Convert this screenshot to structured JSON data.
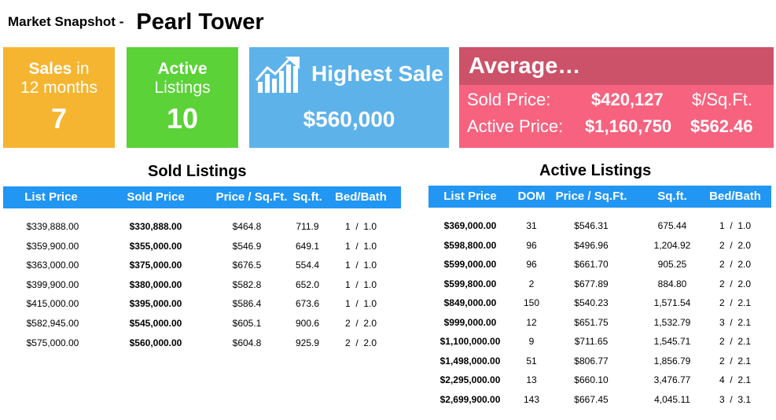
{
  "header": {
    "label": "Market Snapshot -",
    "title": "Pearl Tower"
  },
  "cards": {
    "sales": {
      "line1_bold": "Sales",
      "line1_rest": " in",
      "line2": "12 months",
      "value": "7"
    },
    "active": {
      "line1": "Active",
      "line2": "Listings",
      "value": "10"
    },
    "highest": {
      "title": "Highest Sale",
      "value": "$560,000",
      "icon": "chart-growth-icon"
    },
    "average": {
      "title": "Average…",
      "sold_label": "Sold Price:",
      "sold_value": "$420,127",
      "psf_label": "$/Sq.Ft.",
      "active_label": "Active Price:",
      "active_value": "$1,160,750",
      "psf_value": "$562.46"
    }
  },
  "sold": {
    "title": "Sold Listings",
    "headers": [
      "List Price",
      "Sold Price",
      "Price / Sq.Ft.",
      "Sq.ft.",
      "Bed/Bath"
    ],
    "rows": [
      [
        "$339,888.00",
        "$330,888.00",
        "$464.8",
        "711.9",
        "1  /  1.0"
      ],
      [
        "$359,900.00",
        "$355,000.00",
        "$546.9",
        "649.1",
        "1  /  1.0"
      ],
      [
        "$363,000.00",
        "$375,000.00",
        "$676.5",
        "554.4",
        "1  /  1.0"
      ],
      [
        "$399,900.00",
        "$380,000.00",
        "$582.8",
        "652.0",
        "1  /  1.0"
      ],
      [
        "$415,000.00",
        "$395,000.00",
        "$586.4",
        "673.6",
        "1  /  1.0"
      ],
      [
        "$582,945.00",
        "$545,000.00",
        "$605.1",
        "900.6",
        "2  /  2.0"
      ],
      [
        "$575,000.00",
        "$560,000.00",
        "$604.8",
        "925.9",
        "2  /  2.0"
      ]
    ]
  },
  "active": {
    "title": "Active Listings",
    "headers": [
      "List Price",
      "DOM",
      "Price / Sq.Ft.",
      "Sq.ft.",
      "Bed/Bath"
    ],
    "rows": [
      [
        "$369,000.00",
        "31",
        "$546.31",
        "675.44",
        "1  /  1.0"
      ],
      [
        "$598,800.00",
        "96",
        "$496.96",
        "1,204.92",
        "2  /  2.0"
      ],
      [
        "$599,000.00",
        "96",
        "$661.70",
        "905.25",
        "2  /  2.0"
      ],
      [
        "$599,800.00",
        "2",
        "$677.89",
        "884.80",
        "2  /  2.0"
      ],
      [
        "$849,000.00",
        "150",
        "$540.23",
        "1,571.54",
        "2  /  2.1"
      ],
      [
        "$999,000.00",
        "12",
        "$651.75",
        "1,532.79",
        "3  /  2.1"
      ],
      [
        "$1,100,000.00",
        "9",
        "$711.65",
        "1,545.71",
        "2  /  2.1"
      ],
      [
        "$1,498,000.00",
        "51",
        "$806.77",
        "1,856.79",
        "2  /  2.1"
      ],
      [
        "$2,295,000.00",
        "13",
        "$660.10",
        "3,476.77",
        "4  /  2.1"
      ],
      [
        "$2,699,900.00",
        "143",
        "$667.45",
        "4,045.11",
        "3  /  3.1"
      ]
    ]
  }
}
